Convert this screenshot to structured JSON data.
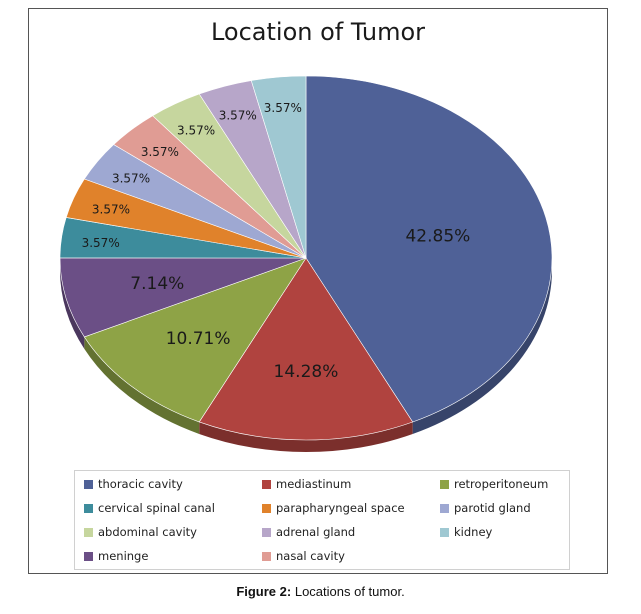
{
  "caption": {
    "label": "Figure 2:",
    "text": "Locations of tumor."
  },
  "chart_data": {
    "type": "pie",
    "title": "Location of Tumor",
    "slices": [
      {
        "name": "thoracic cavity",
        "value": 42.85,
        "label": "42.85%",
        "color": "#4f6197"
      },
      {
        "name": "mediastinum",
        "value": 14.28,
        "label": "14.28%",
        "color": "#b0433f"
      },
      {
        "name": "retroperitoneum",
        "value": 10.71,
        "label": "10.71%",
        "color": "#8ea346"
      },
      {
        "name": "meninge",
        "value": 7.14,
        "label": "7.14%",
        "color": "#6b4f86"
      },
      {
        "name": "cervical spinal canal",
        "value": 3.57,
        "label": "3.57%",
        "color": "#3d8c9c"
      },
      {
        "name": "parapharyngeal space",
        "value": 3.57,
        "label": "3.57%",
        "color": "#e0822b"
      },
      {
        "name": "parotid gland",
        "value": 3.57,
        "label": "3.57%",
        "color": "#9ea8d2"
      },
      {
        "name": "nasal cavity",
        "value": 3.57,
        "label": "3.57%",
        "color": "#e09c94"
      },
      {
        "name": "abdominal cavity",
        "value": 3.57,
        "label": "3.57%",
        "color": "#c6d69e"
      },
      {
        "name": "adrenal gland",
        "value": 3.57,
        "label": "3.57%",
        "color": "#b7a6c9"
      },
      {
        "name": "kidney",
        "value": 3.57,
        "label": "3.57%",
        "color": "#9fc8d2"
      }
    ],
    "legend": [
      [
        "thoracic cavity",
        "mediastinum",
        "retroperitoneum"
      ],
      [
        "cervical spinal canal",
        "parapharyngeal space",
        "parotid gland"
      ],
      [
        "abdominal cavity",
        "adrenal gland",
        "kidney"
      ],
      [
        "meninge",
        "nasal cavity"
      ]
    ],
    "legend_position": "bottom"
  }
}
